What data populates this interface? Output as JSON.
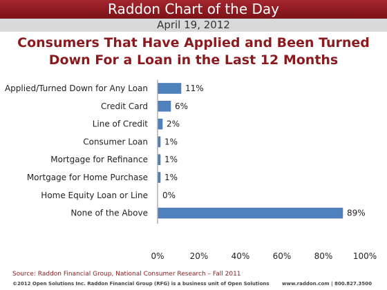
{
  "header": {
    "banner_title": "Raddon Chart of the Day",
    "date": "April 19, 2012"
  },
  "chart_data": {
    "type": "bar",
    "orientation": "horizontal",
    "title_line1": "Consumers That Have Applied and Been Turned",
    "title_line2": "Down For a Loan in the Last 12 Months",
    "categories": [
      "Applied/Turned Down for Any Loan",
      "Credit Card",
      "Line of Credit",
      "Consumer Loan",
      "Mortgage for Refinance",
      "Mortgage for Home Purchase",
      "Home Equity Loan or Line",
      "None of the Above"
    ],
    "values": [
      11,
      6,
      2,
      1,
      1,
      1,
      0,
      89
    ],
    "value_labels": [
      "11%",
      "6%",
      "2%",
      "1%",
      "1%",
      "1%",
      "0%",
      "89%"
    ],
    "xlim": [
      0,
      100
    ],
    "x_ticks": [
      "0%",
      "20%",
      "40%",
      "60%",
      "80%",
      "100%"
    ],
    "bar_color": "#4f81bd",
    "grid": false
  },
  "footer": {
    "source": "Source: Raddon Financial Group, National Consumer Research – Fall 2011",
    "copyright": "©2012 Open Solutions Inc. Raddon Financial Group (RFG) is a business unit of Open Solutions",
    "contact": "www.raddon.com  |  800.827.3500"
  }
}
